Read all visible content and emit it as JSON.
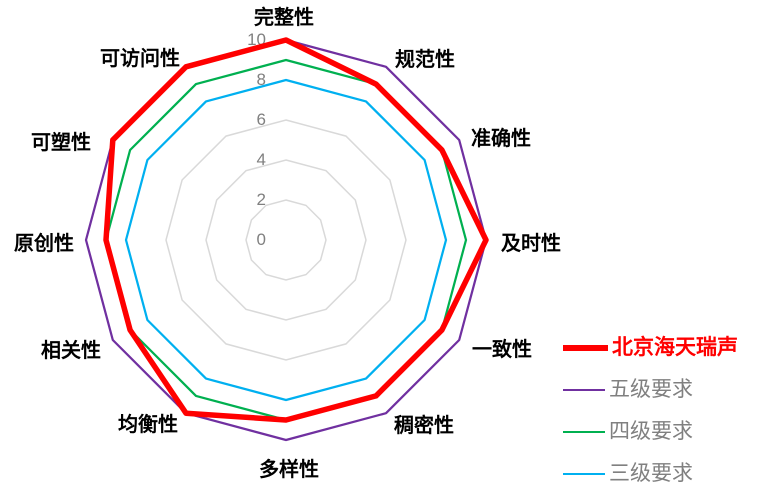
{
  "chart_data": {
    "type": "radar",
    "title": "",
    "categories": [
      "完整性",
      "规范性",
      "准确性",
      "及时性",
      "一致性",
      "稠密性",
      "多样性",
      "均衡性",
      "相关性",
      "原创性",
      "可塑性",
      "可访问性"
    ],
    "series": [
      {
        "name": "北京海天瑞声",
        "color": "#FF0000",
        "line_width": 5.5,
        "legend_text_color": "#FF0000",
        "legend_bold": true,
        "values": [
          10,
          9,
          9,
          10,
          9,
          9,
          9,
          10,
          9,
          9,
          10,
          10
        ]
      },
      {
        "name": "五级要求",
        "color": "#7030A0",
        "line_width": 2.25,
        "legend_text_color": "#808080",
        "legend_bold": false,
        "values": [
          10,
          10,
          10,
          10,
          10,
          10,
          10,
          10,
          10,
          10,
          10,
          10
        ]
      },
      {
        "name": "四级要求",
        "color": "#00B050",
        "line_width": 2.25,
        "legend_text_color": "#808080",
        "legend_bold": false,
        "values": [
          9,
          9,
          9,
          9,
          9,
          9,
          9,
          9,
          9,
          9,
          9,
          9
        ]
      },
      {
        "name": "三级要求",
        "color": "#00B0F0",
        "line_width": 2.25,
        "legend_text_color": "#808080",
        "legend_bold": false,
        "values": [
          8,
          8,
          8,
          8,
          8,
          8,
          8,
          8,
          8,
          8,
          8,
          8
        ]
      }
    ],
    "axis": {
      "min": 0,
      "max": 10,
      "step": 2,
      "tick_labels": [
        "0",
        "2",
        "4",
        "6",
        "8",
        "10"
      ],
      "tick_values": [
        0,
        2,
        4,
        6,
        8,
        10
      ],
      "tick_color": "#808080"
    },
    "grid": {
      "show": true,
      "color": "#D9D9D9",
      "shape": "polygon",
      "spokes": false
    },
    "category_label_color": "#000000",
    "legend_position": "right",
    "fill_areas": false
  }
}
